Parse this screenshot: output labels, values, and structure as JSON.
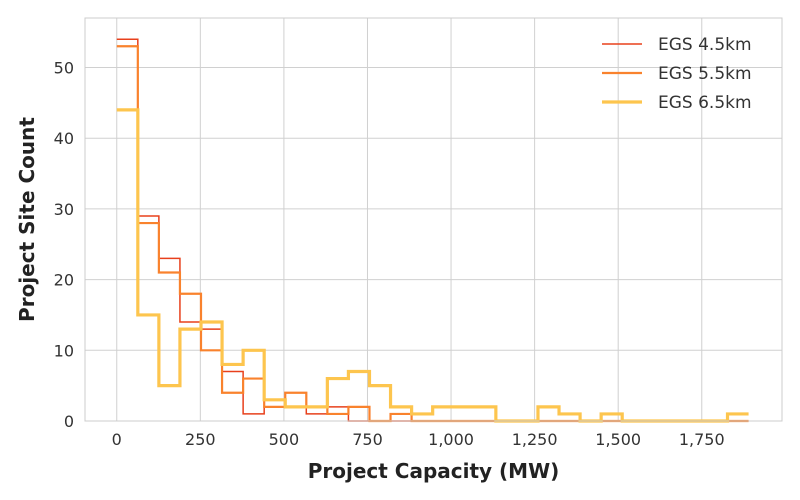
{
  "chart_data": {
    "type": "histogram-step",
    "xlabel": "Project Capacity (MW)",
    "ylabel": "Project Site Count",
    "xlim": [
      -95,
      1990
    ],
    "ylim": [
      0,
      57
    ],
    "x_ticks": [
      0,
      250,
      500,
      750,
      1000,
      1250,
      1500,
      1750
    ],
    "x_tick_labels": [
      "0",
      "250",
      "500",
      "750",
      "1,000",
      "1,250",
      "1,500",
      "1,750"
    ],
    "y_ticks": [
      0,
      10,
      20,
      30,
      40,
      50
    ],
    "y_tick_labels": [
      "0",
      "10",
      "20",
      "30",
      "40",
      "50"
    ],
    "grid": true,
    "legend_position": "top-right",
    "series": [
      {
        "name": "EGS 4.5km",
        "color": "#e8401c",
        "line_width": 1.5,
        "edges": [
          0,
          63,
          126,
          189,
          252,
          315,
          378,
          441,
          504,
          567,
          630,
          693,
          756,
          819,
          882,
          945,
          1008,
          1071,
          1134,
          1197,
          1260,
          1323,
          1386,
          1449,
          1512,
          1575,
          1638,
          1701,
          1764,
          1827,
          1890
        ],
        "counts": [
          54,
          29,
          23,
          14,
          13,
          7,
          1,
          2,
          4,
          1,
          2,
          0,
          0,
          0,
          0,
          0,
          0,
          0,
          0,
          0,
          0,
          0,
          0,
          0,
          0,
          0,
          0,
          0,
          0,
          0
        ]
      },
      {
        "name": "EGS 5.5km",
        "color": "#f9822d",
        "line_width": 2.2,
        "edges": [
          0,
          63,
          126,
          189,
          252,
          315,
          378,
          441,
          504,
          567,
          630,
          693,
          756,
          819,
          882,
          945,
          1008,
          1071,
          1134,
          1197,
          1260,
          1323,
          1386,
          1449,
          1512,
          1575,
          1638,
          1701,
          1764,
          1827,
          1890
        ],
        "counts": [
          53,
          28,
          21,
          18,
          10,
          4,
          6,
          2,
          4,
          2,
          1,
          2,
          0,
          1,
          0,
          0,
          0,
          0,
          0,
          0,
          0,
          0,
          0,
          0,
          0,
          0,
          0,
          0,
          0,
          0
        ]
      },
      {
        "name": "EGS 6.5km",
        "color": "#fdc54e",
        "line_width": 3.2,
        "edges": [
          0,
          63,
          126,
          189,
          252,
          315,
          378,
          441,
          504,
          567,
          630,
          693,
          756,
          819,
          882,
          945,
          1008,
          1071,
          1134,
          1197,
          1260,
          1323,
          1386,
          1449,
          1512,
          1575,
          1638,
          1701,
          1764,
          1827,
          1890
        ],
        "counts": [
          44,
          15,
          5,
          13,
          14,
          8,
          10,
          3,
          2,
          2,
          6,
          7,
          5,
          2,
          1,
          2,
          2,
          2,
          0,
          0,
          2,
          1,
          0,
          1,
          0,
          0,
          0,
          0,
          0,
          1
        ]
      }
    ]
  },
  "colors": {
    "grid": "#d0d0d0",
    "spine": "#cccccc",
    "background": "#ffffff"
  }
}
